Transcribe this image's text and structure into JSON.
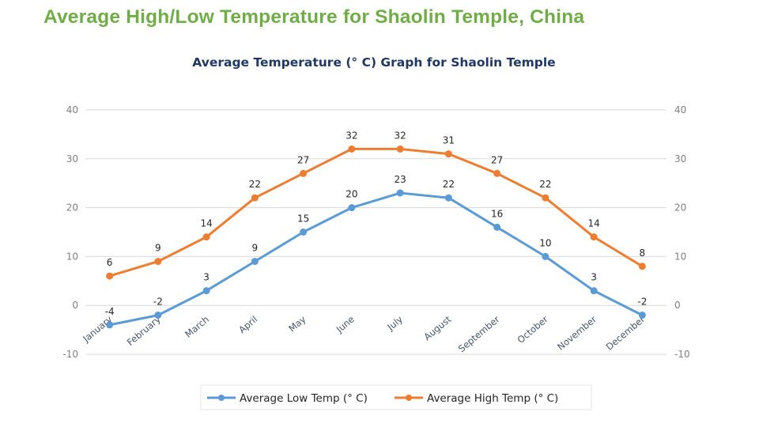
{
  "page": {
    "title": "Average High/Low Temperature for Shaolin Temple, China"
  },
  "chart_data": {
    "type": "line",
    "title": "Average Temperature (° C) Graph for Shaolin Temple",
    "xlabel": "",
    "ylabel": "",
    "categories": [
      "January",
      "February",
      "March",
      "April",
      "May",
      "June",
      "July",
      "August",
      "September",
      "October",
      "November",
      "December"
    ],
    "series": [
      {
        "name": "Average Low Temp (° C)",
        "color": "#5B9BD5",
        "values": [
          -4,
          -2,
          3,
          9,
          15,
          20,
          23,
          22,
          16,
          10,
          3,
          -2
        ]
      },
      {
        "name": "Average High Temp (° C)",
        "color": "#ED7D31",
        "values": [
          6,
          9,
          14,
          22,
          27,
          32,
          32,
          31,
          27,
          22,
          14,
          8
        ]
      }
    ],
    "ylim": [
      -10,
      40
    ],
    "yticks": [
      -10,
      0,
      10,
      20,
      30,
      40
    ],
    "y_axis_sides": "left-and-right",
    "grid": true,
    "data_labels": true,
    "markers": "circle",
    "legend_position": "bottom"
  }
}
